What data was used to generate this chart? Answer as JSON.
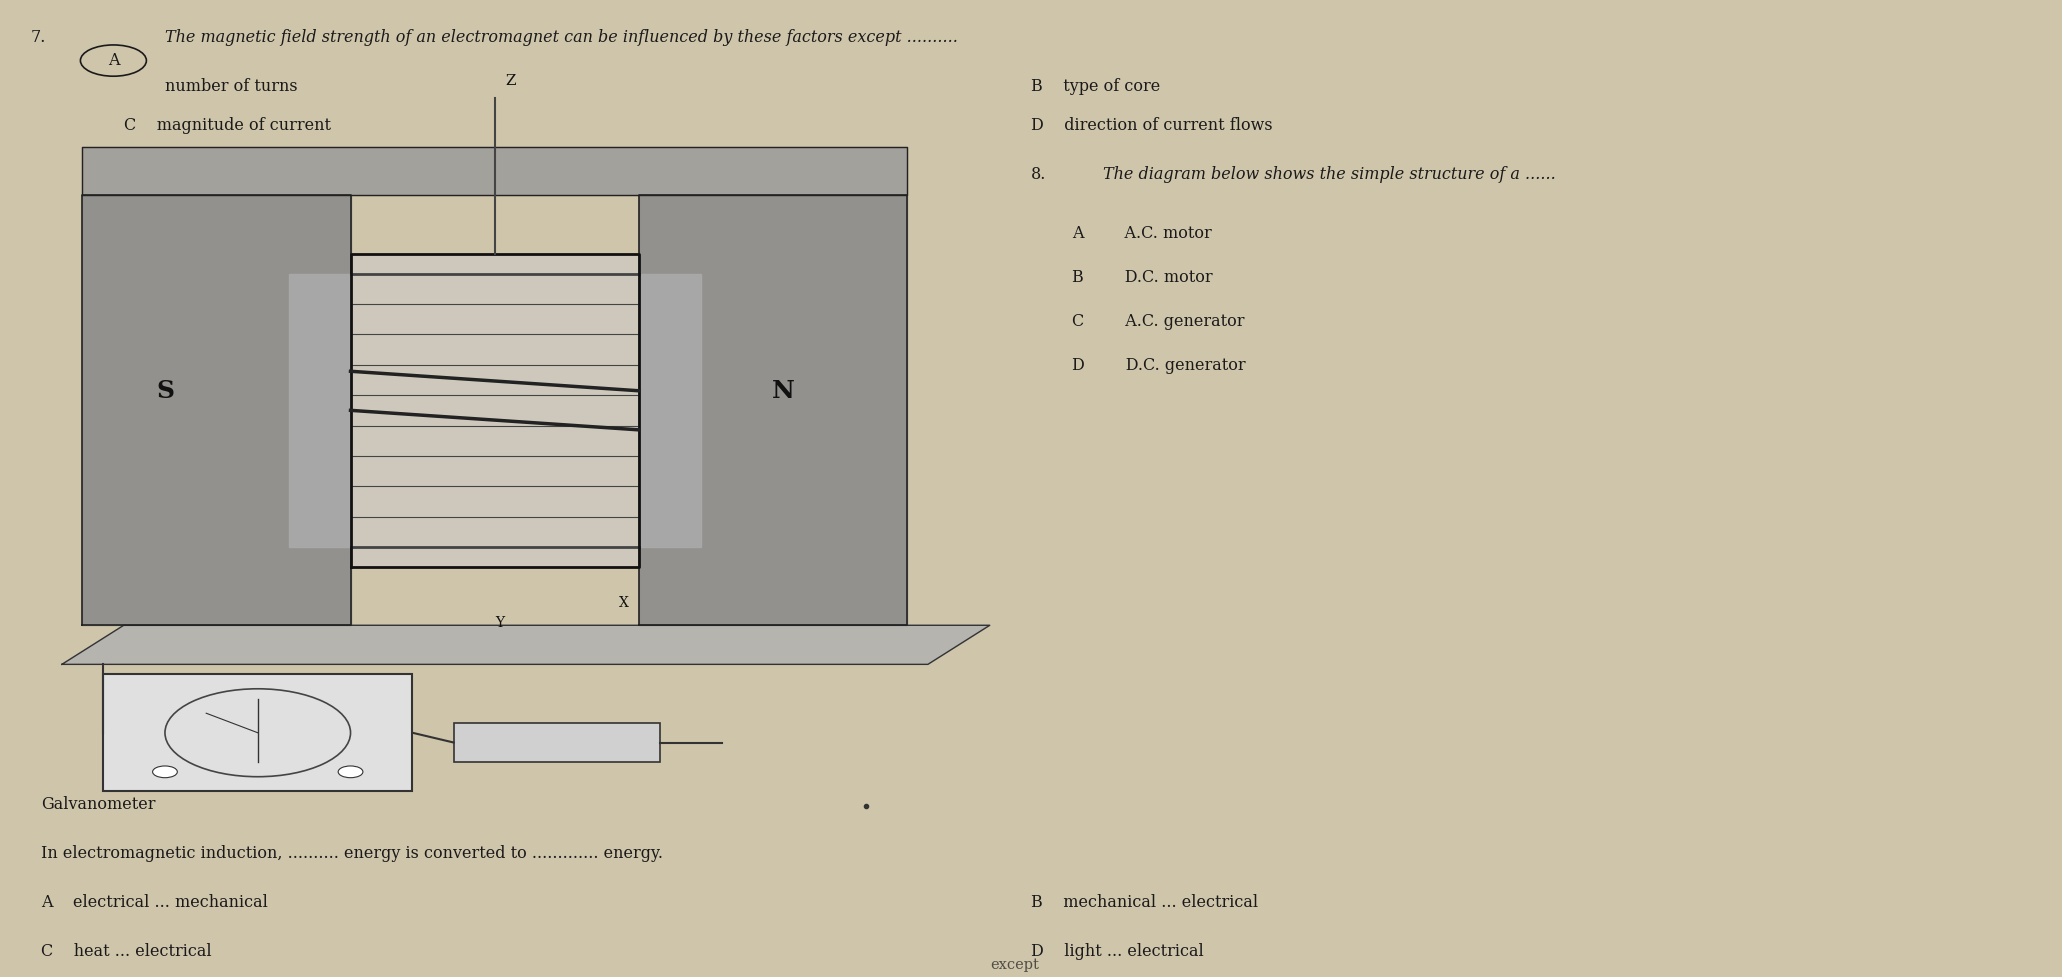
{
  "bg_color": "#cfc5aa",
  "text_color": "#1a1a1a",
  "q7_number": "7.",
  "q7_circle_label": "A",
  "q7_question": "The magnetic field strength of an electromagnet can be influenced by these factors except ..........",
  "q7_A": "number of turns",
  "q7_B": "B    type of core",
  "q7_C": "C    magnitude of current",
  "q7_D": "D    direction of current flows",
  "q8_number": "8.",
  "q8_question": "The diagram below shows the simple structure of a ......",
  "q8_A": "A        A.C. motor",
  "q8_B": "B        D.C. motor",
  "q8_C": "C        A.C. generator",
  "q8_D": "D        D.C. generator",
  "galvanometer_label": "Galvanometer",
  "q9_text1": "In electromagnetic induction, .......... energy is converted to ............. energy.",
  "q9_A": "A    electrical ... mechanical",
  "q9_B": "B    mechanical ... electrical",
  "q9_C": "C    heat ... electrical",
  "q9_D": "D    light ... electrical",
  "bottom_text": "except"
}
